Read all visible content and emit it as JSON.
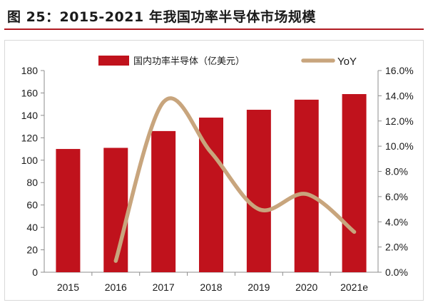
{
  "title": "图 25：2015-2021 年我国功率半导体市场规模",
  "colors": {
    "bar": "#c0121c",
    "line": "#c8a57d",
    "title_rule": "#b01a22"
  },
  "chart_data": {
    "type": "bar",
    "title": "",
    "categories": [
      "2015",
      "2016",
      "2017",
      "2018",
      "2019",
      "2020",
      "2021e"
    ],
    "series": [
      {
        "name": "国内功率半导体（亿美元）",
        "type": "bar",
        "axis": "left",
        "values": [
          110,
          111,
          126,
          138,
          145,
          154,
          159
        ]
      },
      {
        "name": "YoY",
        "type": "line",
        "axis": "right",
        "values": [
          null,
          0.9,
          13.5,
          9.5,
          5.0,
          6.2,
          3.2
        ]
      }
    ],
    "y_left": {
      "min": 0,
      "max": 180,
      "step": 20,
      "ticks": [
        "0",
        "20",
        "40",
        "60",
        "80",
        "100",
        "120",
        "140",
        "160",
        "180"
      ]
    },
    "y_right": {
      "min": 0,
      "max": 16,
      "step": 2,
      "ticks": [
        "0.0%",
        "2.0%",
        "4.0%",
        "6.0%",
        "8.0%",
        "10.0%",
        "12.0%",
        "14.0%",
        "16.0%"
      ]
    },
    "legend": {
      "position": "top"
    },
    "grid": false
  }
}
